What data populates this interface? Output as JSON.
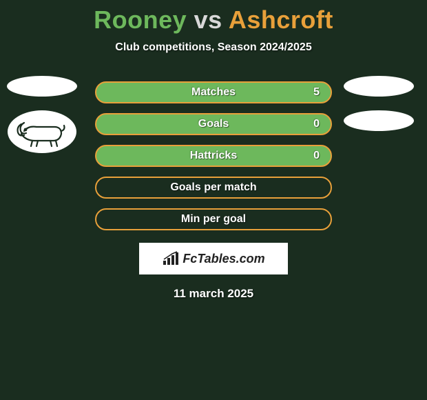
{
  "title": {
    "player1": "Rooney",
    "vs": "vs",
    "player2": "Ashcroft",
    "player1_color": "#6db85c",
    "player2_color": "#e8a03a",
    "vs_color": "#d8d8d8"
  },
  "subtitle": "Club competitions, Season 2024/2025",
  "bars": [
    {
      "label": "Matches",
      "left_value": "",
      "right_value": "5",
      "fill_color": "#6db85c",
      "border_color": "#e8a03a",
      "fill_pct": 100
    },
    {
      "label": "Goals",
      "left_value": "",
      "right_value": "0",
      "fill_color": "#6db85c",
      "border_color": "#e8a03a",
      "fill_pct": 100
    },
    {
      "label": "Hattricks",
      "left_value": "",
      "right_value": "0",
      "fill_color": "#6db85c",
      "border_color": "#e8a03a",
      "fill_pct": 100
    },
    {
      "label": "Goals per match",
      "left_value": "",
      "right_value": "",
      "fill_color": "transparent",
      "border_color": "#e8a03a",
      "fill_pct": 0
    },
    {
      "label": "Min per goal",
      "left_value": "",
      "right_value": "",
      "fill_color": "transparent",
      "border_color": "#e8a03a",
      "fill_pct": 0
    }
  ],
  "left_badges": {
    "ellipse_color": "#ffffff",
    "ram_stroke": "#1a2d1f"
  },
  "right_badges": {
    "ellipse_color": "#ffffff"
  },
  "logo": {
    "text": "FcTables.com",
    "background": "#ffffff",
    "text_color": "#222222"
  },
  "date": "11 march 2025",
  "colors": {
    "page_bg": "#1a2d1f",
    "text": "#ffffff"
  }
}
